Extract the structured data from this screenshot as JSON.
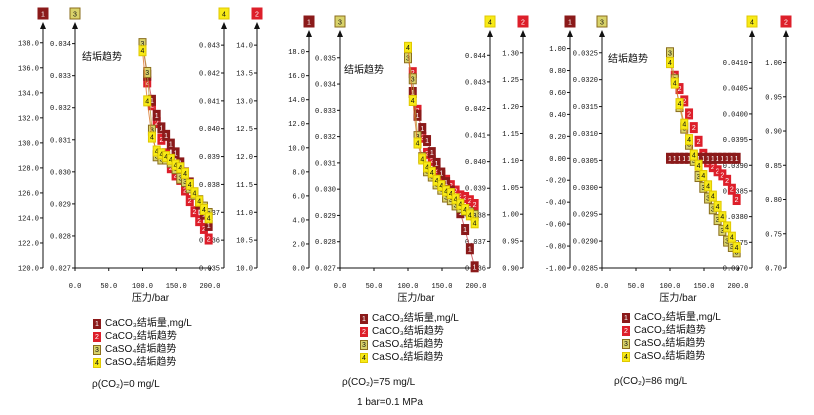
{
  "colors": {
    "axis": "#111111",
    "series1_fill": "#8b1a1a",
    "series2_fill": "#dd1f2a",
    "series3_fill": "#d9d36a",
    "series3_edge": "#8a6d1c",
    "series4_fill": "#f7ea17",
    "line_orange": "#d9772b"
  },
  "legend_labels": [
    "CaCO₃结垢量,mg/L",
    "CaCO₃结垢趋势",
    "CaSO₄结垢趋势",
    "CaSO₄结垢趋势"
  ],
  "legend_markers": [
    "1",
    "2",
    "3",
    "4"
  ],
  "axis_header_markers": [
    "1",
    "3",
    "4",
    "2"
  ],
  "chart_data": [
    {
      "type": "scatter",
      "trend_label": "结垢趋势",
      "xlabel": "压力/bar",
      "condition": "ρ(CO₂)=0 mg/L",
      "note": "",
      "x_ticks": [
        "0.0",
        "50.0",
        "100.0",
        "150.0",
        "200.0"
      ],
      "xlim": [
        0,
        200
      ],
      "axes": {
        "1": {
          "ticks": [
            "120.0",
            "122.0",
            "124.0",
            "126.0",
            "128.0",
            "130.0",
            "132.0",
            "134.0",
            "136.0",
            "138.0"
          ],
          "ylim": [
            120,
            138.7
          ]
        },
        "3": {
          "ticks": [
            "0.027",
            "0.028",
            "0.029",
            "0.030",
            "0.031",
            "0.032",
            "0.033",
            "0.034"
          ],
          "ylim": [
            0.027,
            0.0343
          ]
        },
        "4": {
          "ticks": [
            "0.035",
            "0.036",
            "0.037",
            "0.038",
            "0.039",
            "0.040",
            "0.041",
            "0.042",
            "0.043"
          ],
          "ylim": [
            0.035,
            0.0434
          ]
        },
        "2": {
          "ticks": [
            "10.0",
            "10.5",
            "11.0",
            "11.5",
            "12.0",
            "12.5",
            "13.0",
            "13.5",
            "14.0"
          ],
          "ylim": [
            10,
            14.2
          ]
        }
      },
      "series": [
        {
          "marker": "1",
          "axis": "1",
          "x": [
            100,
            107,
            114,
            121,
            128,
            135,
            142,
            149,
            156,
            163,
            170,
            177,
            184,
            191,
            198
          ],
          "y": [
            137.9,
            135.4,
            133.4,
            132.2,
            131.2,
            130.6,
            129.9,
            129.2,
            128.4,
            127.6,
            126.8,
            126.0,
            125.1,
            124.3,
            123.4
          ]
        },
        {
          "marker": "2",
          "axis": "2",
          "x": [
            100,
            107,
            114,
            121,
            128,
            135,
            142,
            149,
            156,
            163,
            170,
            177,
            184,
            191,
            198
          ],
          "y": [
            13.95,
            13.34,
            12.93,
            12.61,
            12.31,
            12.05,
            11.8,
            11.67,
            11.59,
            11.4,
            11.21,
            11.01,
            10.85,
            10.71,
            10.52
          ]
        },
        {
          "marker": "3",
          "axis": "3",
          "x": [
            100,
            107,
            114,
            121,
            128,
            135,
            142,
            149,
            156,
            163,
            170,
            177,
            184,
            191,
            198
          ],
          "y": [
            0.034,
            0.0331,
            0.0313,
            0.0305,
            0.0304,
            0.0304,
            0.0303,
            0.0301,
            0.0298,
            0.0297,
            0.0295,
            0.0293,
            0.0291,
            0.0289,
            0.0287
          ]
        },
        {
          "marker": "4",
          "axis": "4",
          "x": [
            100,
            107,
            114,
            121,
            128,
            135,
            142,
            149,
            156,
            163,
            170,
            177,
            184,
            191,
            198
          ],
          "y": [
            0.0428,
            0.041,
            0.0397,
            0.0392,
            0.0391,
            0.039,
            0.0389,
            0.0387,
            0.0386,
            0.0384,
            0.038,
            0.0377,
            0.0374,
            0.0371,
            0.0368
          ]
        }
      ]
    },
    {
      "type": "scatter",
      "trend_label": "结垢趋势",
      "xlabel": "压力/bar",
      "condition": "ρ(CO₂)=75 mg/L",
      "note": "1 bar=0.1 MPa",
      "x_ticks": [
        "0.0",
        "50.0",
        "100.0",
        "150.0",
        "200.0"
      ],
      "xlim": [
        0,
        200
      ],
      "axes": {
        "1": {
          "ticks": [
            "0.0",
            "2.0",
            "4.0",
            "6.0",
            "8.0",
            "10.0",
            "12.0",
            "14.0",
            "16.0",
            "18.0"
          ],
          "ylim": [
            0,
            18.8
          ]
        },
        "3": {
          "ticks": [
            "0.027",
            "0.028",
            "0.029",
            "0.030",
            "0.031",
            "0.032",
            "0.033",
            "0.034",
            "0.035"
          ],
          "ylim": [
            0.027,
            0.0356
          ]
        },
        "4": {
          "ticks": [
            "0.036",
            "0.037",
            "0.038",
            "0.039",
            "0.040",
            "0.041",
            "0.042",
            "0.043",
            "0.044"
          ],
          "ylim": [
            0.036,
            0.0445
          ]
        },
        "2": {
          "ticks": [
            "0.90",
            "0.95",
            "1.00",
            "1.05",
            "1.10",
            "1.15",
            "1.20",
            "1.25",
            "1.30"
          ],
          "ylim": [
            0.9,
            1.32
          ]
        }
      },
      "series": [
        {
          "marker": "1",
          "axis": "1",
          "x": [
            100,
            107,
            114,
            121,
            128,
            135,
            142,
            149,
            156,
            163,
            170,
            177,
            184,
            191,
            198
          ],
          "y": [
            17.8,
            14.6,
            12.7,
            11.6,
            10.6,
            9.6,
            8.7,
            7.9,
            7.1,
            6.4,
            5.6,
            4.6,
            3.2,
            1.6,
            0.1
          ]
        },
        {
          "marker": "2",
          "axis": "2",
          "x": [
            100,
            107,
            114,
            121,
            128,
            135,
            142,
            149,
            156,
            163,
            170,
            177,
            184,
            191,
            198
          ],
          "y": [
            1.3,
            1.263,
            1.193,
            1.143,
            1.113,
            1.1,
            1.082,
            1.072,
            1.063,
            1.053,
            1.043,
            1.034,
            1.031,
            1.025,
            1.018
          ]
        },
        {
          "marker": "3",
          "axis": "3",
          "x": [
            100,
            107,
            114,
            121,
            128,
            135,
            142,
            149,
            156,
            163,
            170,
            177,
            184,
            191,
            198
          ],
          "y": [
            0.035,
            0.0342,
            0.032,
            0.0312,
            0.0307,
            0.0305,
            0.0302,
            0.03,
            0.0297,
            0.0296,
            0.0294,
            0.0293,
            0.0292,
            0.0291,
            0.029
          ]
        },
        {
          "marker": "4",
          "axis": "4",
          "x": [
            100,
            107,
            114,
            121,
            128,
            135,
            142,
            149,
            156,
            163,
            170,
            177,
            184,
            191,
            198
          ],
          "y": [
            0.0443,
            0.0423,
            0.0407,
            0.0401,
            0.0398,
            0.0396,
            0.0393,
            0.0391,
            0.0389,
            0.0388,
            0.0386,
            0.0384,
            0.0382,
            0.038,
            0.0377
          ]
        }
      ]
    },
    {
      "type": "scatter",
      "trend_label": "结垢趋势",
      "xlabel": "压力/bar",
      "condition": "ρ(CO₂)=86 mg/L",
      "note": "",
      "x_ticks": [
        "0.0",
        "50.0",
        "100.0",
        "150.0",
        "200.0"
      ],
      "xlim": [
        0,
        200
      ],
      "axes": {
        "1": {
          "ticks": [
            "-1.00",
            "-0.80",
            "-0.60",
            "-0.40",
            "-0.20",
            "0.00",
            "0.20",
            "0.40",
            "0.60",
            "0.80",
            "1.00"
          ],
          "ylim": [
            -1.0,
            1.06
          ]
        },
        "3": {
          "ticks": [
            "0.0285",
            "0.0290",
            "0.0295",
            "0.0300",
            "0.0305",
            "0.0310",
            "0.0315",
            "0.0320",
            "0.0325"
          ],
          "ylim": [
            0.0285,
            0.0327
          ]
        },
        "4": {
          "ticks": [
            "0.0370",
            "0.0375",
            "0.0380",
            "0.0385",
            "0.0390",
            "0.0395",
            "0.0400",
            "0.0405",
            "0.0410"
          ],
          "ylim": [
            0.037,
            0.0414
          ]
        },
        "2": {
          "ticks": [
            "0.70",
            "0.75",
            "0.80",
            "0.85",
            "0.90",
            "0.95",
            "1.00"
          ],
          "ylim": [
            0.7,
            1.03
          ]
        }
      },
      "series": [
        {
          "marker": "1",
          "axis": "1",
          "x": [
            100,
            107,
            114,
            121,
            128,
            135,
            142,
            149,
            156,
            163,
            170,
            177,
            184,
            191,
            198
          ],
          "y": [
            0,
            0,
            0,
            0,
            0,
            0,
            0,
            0,
            0,
            0,
            0,
            0,
            0,
            0,
            0
          ]
        },
        {
          "marker": "2",
          "axis": "2",
          "x": [
            100,
            107,
            114,
            121,
            128,
            135,
            142,
            149,
            156,
            163,
            170,
            177,
            184,
            191,
            198
          ],
          "y": [
            1.0,
            0.98,
            0.962,
            0.944,
            0.925,
            0.905,
            0.885,
            0.866,
            0.855,
            0.848,
            0.842,
            0.836,
            0.828,
            0.815,
            0.8
          ]
        },
        {
          "marker": "3",
          "axis": "3",
          "x": [
            100,
            107,
            114,
            121,
            128,
            135,
            142,
            149,
            156,
            163,
            170,
            177,
            184,
            191,
            198
          ],
          "y": [
            0.0325,
            0.032,
            0.0315,
            0.0311,
            0.0308,
            0.0305,
            0.0302,
            0.03,
            0.0298,
            0.0296,
            0.0294,
            0.0292,
            0.029,
            0.0289,
            0.0288
          ]
        },
        {
          "marker": "4",
          "axis": "4",
          "x": [
            100,
            107,
            114,
            121,
            128,
            135,
            142,
            149,
            156,
            163,
            170,
            177,
            184,
            191,
            198
          ],
          "y": [
            0.041,
            0.0406,
            0.0402,
            0.0398,
            0.0395,
            0.0392,
            0.039,
            0.0388,
            0.0386,
            0.0384,
            0.0382,
            0.038,
            0.0378,
            0.0376,
            0.0374
          ]
        }
      ]
    }
  ]
}
